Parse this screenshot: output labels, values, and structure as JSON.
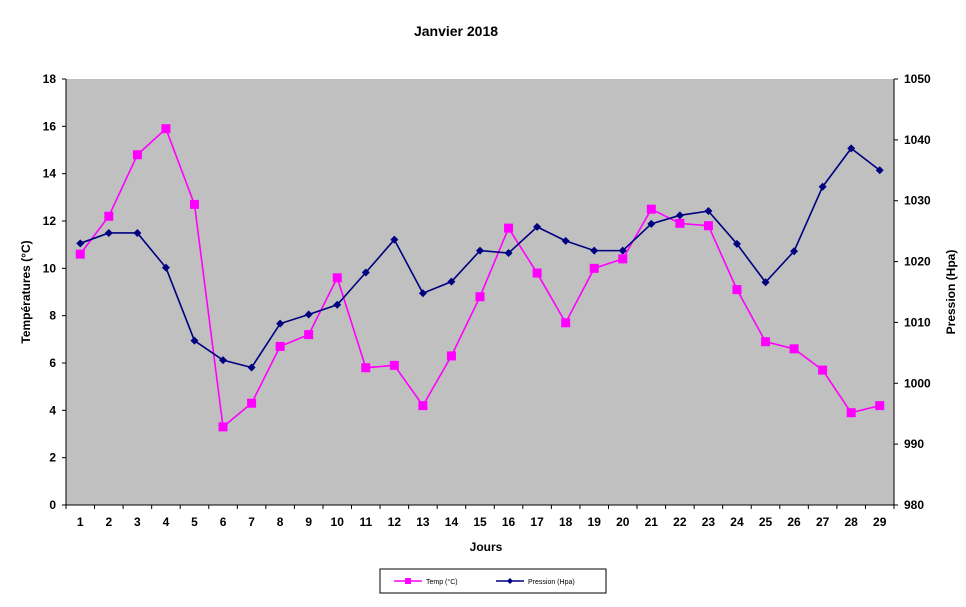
{
  "chart_data": {
    "type": "line",
    "title": "Janvier 2018",
    "xlabel": "Jours",
    "ylabel_left": "Températures (°C)",
    "ylabel_right": "Pression (Hpa)",
    "x": [
      1,
      2,
      3,
      4,
      5,
      6,
      7,
      8,
      9,
      10,
      11,
      12,
      13,
      14,
      15,
      16,
      17,
      18,
      19,
      20,
      21,
      22,
      23,
      24,
      25,
      26,
      27,
      28,
      29
    ],
    "ylim_left": [
      0,
      18
    ],
    "yticks_left": [
      0,
      2,
      4,
      6,
      8,
      10,
      12,
      14,
      16,
      18
    ],
    "ylim_right": [
      980,
      1050
    ],
    "yticks_right": [
      980,
      990,
      1000,
      1010,
      1020,
      1030,
      1040,
      1050
    ],
    "grid": false,
    "plot_background": "#c0c0c0",
    "legend_position": "bottom",
    "series": [
      {
        "name": "Temp (°C)",
        "axis": "left",
        "color": "#ff00ff",
        "marker": "square",
        "values": [
          10.6,
          12.2,
          14.8,
          15.9,
          12.7,
          3.3,
          4.3,
          6.7,
          7.2,
          9.6,
          5.8,
          5.9,
          4.2,
          6.3,
          8.8,
          11.7,
          9.8,
          7.7,
          10.0,
          10.4,
          12.5,
          11.9,
          11.8,
          9.1,
          6.9,
          6.6,
          5.7,
          3.9,
          4.2
        ]
      },
      {
        "name": "Pression (Hpa)",
        "axis": "right",
        "color": "#000080",
        "marker": "diamond",
        "values": [
          1023,
          1024.7,
          1024.7,
          1019,
          1007,
          1003.8,
          1002.6,
          1009.8,
          1011.3,
          1012.9,
          1018.2,
          1023.6,
          1014.8,
          1016.7,
          1021.8,
          1021.4,
          1025.7,
          1023.4,
          1021.8,
          1021.8,
          1026.2,
          1027.6,
          1028.3,
          1022.9,
          1016.6,
          1021.7,
          1032.3,
          1038.6,
          1035
        ]
      }
    ]
  }
}
